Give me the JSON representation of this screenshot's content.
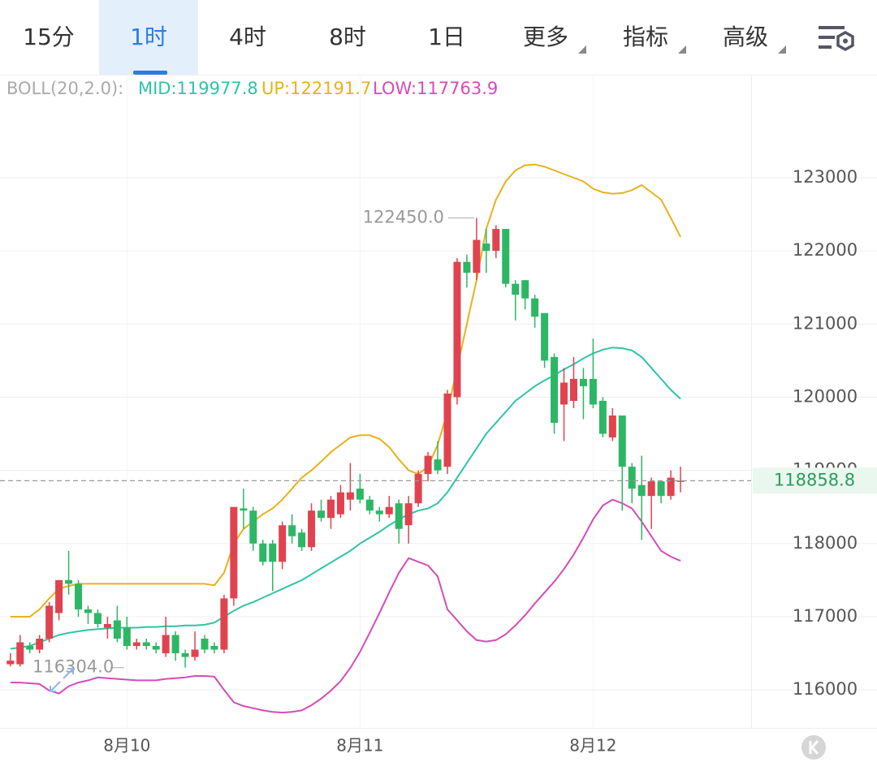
{
  "tabs": [
    "15分",
    "1时",
    "4时",
    "8时",
    "1日",
    "更多",
    "指标",
    "高级"
  ],
  "selected_tab": 1,
  "indicator_legend": {
    "title": "BOLL(20,2.0):",
    "mid": "MID:119977.8",
    "up": "UP:122191.7",
    "low": "LOW:117763.9"
  },
  "chart_data": {
    "type": "candlestick",
    "categories": [
      null,
      null,
      null,
      null,
      null,
      null,
      null,
      null,
      null,
      null,
      null,
      null,
      "8月10",
      null,
      null,
      null,
      null,
      null,
      null,
      null,
      null,
      null,
      null,
      null,
      null,
      null,
      null,
      null,
      null,
      null,
      null,
      null,
      null,
      null,
      null,
      null,
      "8月11",
      null,
      null,
      null,
      null,
      null,
      null,
      null,
      null,
      null,
      null,
      null,
      null,
      null,
      null,
      null,
      null,
      null,
      null,
      null,
      null,
      null,
      null,
      null,
      "8月12",
      null,
      null,
      null,
      null,
      null,
      null,
      null,
      null,
      null
    ],
    "open": [
      116350,
      116350,
      116600,
      116550,
      116700,
      117050,
      117500,
      117450,
      117100,
      117050,
      116850,
      116950,
      116850,
      116600,
      116650,
      116600,
      116500,
      116750,
      116500,
      116450,
      116700,
      116600,
      116550,
      117250,
      118480,
      118450,
      118000,
      118000,
      117750,
      118250,
      118150,
      117950,
      118450,
      118350,
      118400,
      118600,
      118750,
      118600,
      118450,
      118400,
      118550,
      118250,
      118550,
      118950,
      119150,
      119050,
      120000,
      121850,
      121700,
      122100,
      122000,
      122300,
      121550,
      121600,
      121350,
      121150,
      120550,
      119900,
      119950,
      120250,
      120250,
      119950,
      119450,
      119750,
      119050,
      118800,
      118650,
      118850,
      118650,
      118850
    ],
    "high": [
      116500,
      116750,
      116650,
      116750,
      117200,
      117500,
      117900,
      117500,
      117150,
      117100,
      117000,
      117150,
      117000,
      116700,
      116700,
      116650,
      117000,
      116800,
      116550,
      116800,
      116750,
      116650,
      117300,
      118500,
      118750,
      118500,
      118050,
      118050,
      118300,
      118400,
      118200,
      118550,
      118600,
      118650,
      118800,
      119100,
      118950,
      118650,
      118500,
      118650,
      118600,
      118650,
      119000,
      119250,
      119400,
      120100,
      121900,
      121950,
      122450,
      122300,
      122350,
      122300,
      121600,
      121600,
      121400,
      121150,
      120600,
      120400,
      120550,
      120400,
      120800,
      120000,
      119850,
      119750,
      119100,
      119200,
      118900,
      118850,
      119000,
      119050
    ],
    "low": [
      116320,
      116320,
      116500,
      116500,
      116650,
      116950,
      117300,
      117000,
      116900,
      116850,
      116700,
      116650,
      116550,
      116550,
      116550,
      116500,
      116450,
      116400,
      116304,
      116400,
      116500,
      116500,
      116500,
      117150,
      118200,
      117900,
      117700,
      117350,
      117650,
      118000,
      117900,
      117900,
      118300,
      118200,
      118350,
      118450,
      118550,
      118400,
      118300,
      118350,
      118000,
      118000,
      118500,
      118850,
      118950,
      118950,
      119900,
      121500,
      121600,
      121700,
      121900,
      121500,
      121050,
      121200,
      120950,
      120400,
      119500,
      119400,
      119850,
      119700,
      119850,
      119450,
      119400,
      118450,
      118550,
      118050,
      118200,
      118550,
      118600,
      118700
    ],
    "close": [
      116400,
      116650,
      116550,
      116700,
      117150,
      117500,
      117450,
      117100,
      117050,
      116900,
      116900,
      116700,
      116600,
      116650,
      116600,
      116550,
      116750,
      116500,
      116450,
      116550,
      116550,
      116550,
      117250,
      118500,
      118450,
      118000,
      117750,
      117750,
      118250,
      118100,
      117950,
      118450,
      118350,
      118600,
      118700,
      118700,
      118600,
      118450,
      118400,
      118500,
      118200,
      118550,
      118950,
      119200,
      119000,
      120050,
      121850,
      121700,
      122150,
      122000,
      122300,
      121550,
      121400,
      121350,
      121100,
      120500,
      119650,
      120200,
      120250,
      120150,
      119900,
      119500,
      119750,
      119050,
      118750,
      118650,
      118850,
      118650,
      118900,
      118858.8
    ],
    "up_color": "#e0434f",
    "down_color": "#2db765",
    "series": [
      {
        "name": "UP",
        "color": "#e8b21a",
        "values": [
          117000,
          117000,
          117000,
          117100,
          117250,
          117380,
          117420,
          117450,
          117450,
          117450,
          117450,
          117450,
          117450,
          117450,
          117450,
          117450,
          117450,
          117450,
          117450,
          117450,
          117450,
          117430,
          117600,
          118000,
          118200,
          118300,
          118400,
          118480,
          118600,
          118750,
          118900,
          119000,
          119120,
          119250,
          119350,
          119450,
          119480,
          119480,
          119430,
          119320,
          119150,
          119000,
          118950,
          119050,
          119350,
          119800,
          120400,
          121000,
          121600,
          122300,
          122700,
          122950,
          123100,
          123170,
          123180,
          123150,
          123100,
          123050,
          123000,
          122950,
          122850,
          122800,
          122780,
          122790,
          122830,
          122900,
          122800,
          122700,
          122450,
          122191.7
        ]
      },
      {
        "name": "MID",
        "color": "#2ec4a5",
        "values": [
          116560,
          116580,
          116600,
          116650,
          116700,
          116750,
          116780,
          116800,
          116820,
          116830,
          116840,
          116850,
          116850,
          116850,
          116860,
          116860,
          116870,
          116870,
          116880,
          116880,
          116890,
          116920,
          117000,
          117080,
          117150,
          117200,
          117260,
          117320,
          117380,
          117440,
          117500,
          117580,
          117660,
          117740,
          117820,
          117900,
          118000,
          118080,
          118160,
          118250,
          118330,
          118400,
          118450,
          118480,
          118550,
          118700,
          118900,
          119100,
          119300,
          119500,
          119650,
          119800,
          119950,
          120050,
          120150,
          120230,
          120300,
          120380,
          120450,
          120530,
          120600,
          120650,
          120680,
          120670,
          120640,
          120550,
          120400,
          120250,
          120100,
          119977.8
        ]
      },
      {
        "name": "LOW",
        "color": "#d64bb8",
        "values": [
          116100,
          116100,
          116090,
          116080,
          115990,
          115950,
          116050,
          116100,
          116130,
          116170,
          116160,
          116150,
          116140,
          116130,
          116130,
          116130,
          116150,
          116160,
          116170,
          116190,
          116190,
          116180,
          116000,
          115830,
          115780,
          115750,
          115720,
          115700,
          115690,
          115700,
          115720,
          115790,
          115880,
          115990,
          116120,
          116300,
          116520,
          116780,
          117050,
          117330,
          117600,
          117800,
          117750,
          117700,
          117550,
          117100,
          116950,
          116800,
          116680,
          116660,
          116680,
          116760,
          116880,
          117020,
          117180,
          117330,
          117480,
          117650,
          117850,
          118080,
          118330,
          118520,
          118600,
          118550,
          118480,
          118300,
          118100,
          117900,
          117820,
          117763.9
        ]
      }
    ],
    "ylim": [
      115480,
      124375
    ],
    "yticks": [
      116000,
      117000,
      118000,
      119000,
      120000,
      121000,
      122000,
      123000
    ],
    "grid": true,
    "current_price": 118858.8,
    "annotations": [
      {
        "value": 122450,
        "label": "122450.0"
      },
      {
        "value": 116304,
        "label": "116304.0"
      }
    ]
  }
}
